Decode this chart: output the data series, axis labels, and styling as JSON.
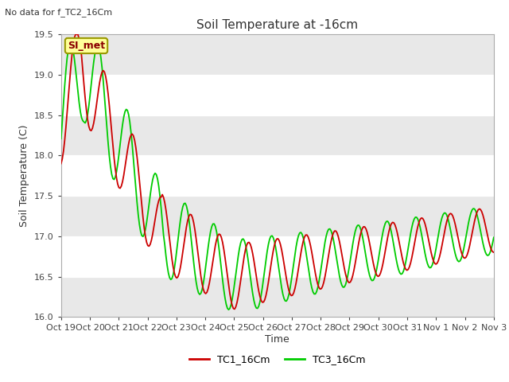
{
  "title": "Soil Temperature at -16cm",
  "ylabel": "Soil Temperature (C)",
  "xlabel": "Time",
  "top_left_text": "No data for f_TC2_16Cm",
  "legend_label": "SI_met",
  "ylim": [
    16.0,
    19.5
  ],
  "yticks": [
    16.0,
    16.5,
    17.0,
    17.5,
    18.0,
    18.5,
    19.0,
    19.5
  ],
  "background_color": "#ffffff",
  "plot_bg_color": "#f0f0f0",
  "line1_color": "#cc0000",
  "line2_color": "#00cc00",
  "line1_label": "TC1_16Cm",
  "line2_label": "TC3_16Cm",
  "legend_box_color": "#ffff99",
  "legend_box_edge": "#999900",
  "x_tick_labels": [
    "Oct 19",
    "Oct 20",
    "Oct 21",
    "Oct 22",
    "Oct 23",
    "Oct 24",
    "Oct 25",
    "Oct 26",
    "Oct 27",
    "Oct 28",
    "Oct 29",
    "Oct 30",
    "Oct 31",
    "Nov 1",
    "Nov 2",
    "Nov 3"
  ],
  "grid_color": "#ffffff",
  "band_color": "#e8e8e8"
}
